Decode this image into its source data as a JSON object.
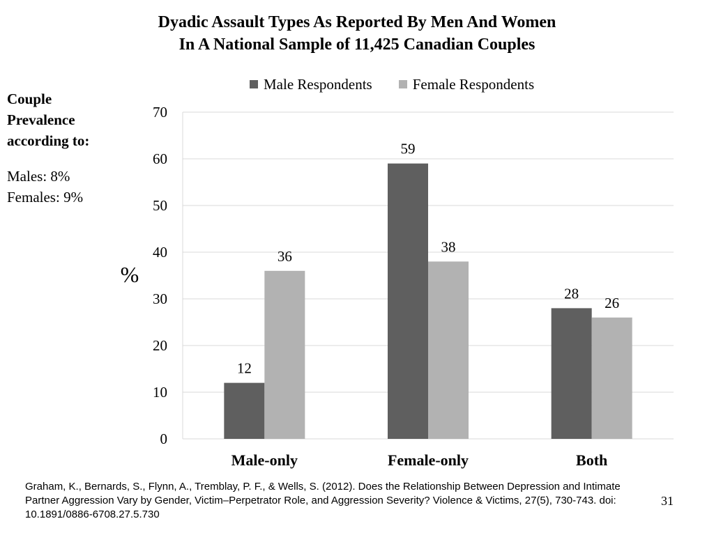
{
  "title": {
    "line1": "Dyadic Assault Types As Reported By Men And Women",
    "line2": "In A National Sample of 11,425 Canadian Couples"
  },
  "sidebar": {
    "heading_lines": [
      "Couple",
      "Prevalence",
      "according to:"
    ],
    "males": "Males: 8%",
    "females": "Females: 9%"
  },
  "citation": "Graham, K., Bernards, S., Flynn, A., Tremblay, P. F., & Wells, S. (2012). Does the Relationship Between Depression and Intimate Partner Aggression Vary by Gender, Victim–Perpetrator Role, and Aggression Severity? Violence & Victims, 27(5), 730-743. doi: 10.1891/0886-6708.27.5.730",
  "page_number": "31",
  "chart_data": {
    "type": "bar",
    "categories": [
      "Male-only",
      "Female-only",
      "Both"
    ],
    "series": [
      {
        "name": "Male Respondents",
        "values": [
          12,
          59,
          28
        ],
        "color": "#5f5f5f"
      },
      {
        "name": "Female Respondents",
        "values": [
          36,
          38,
          26
        ],
        "color": "#b2b2b2"
      }
    ],
    "ylabel": "%",
    "ylim": [
      0,
      70
    ],
    "yticks": [
      0,
      10,
      20,
      30,
      40,
      50,
      60,
      70
    ],
    "grid": true,
    "data_labels": true,
    "legend_position": "top"
  }
}
